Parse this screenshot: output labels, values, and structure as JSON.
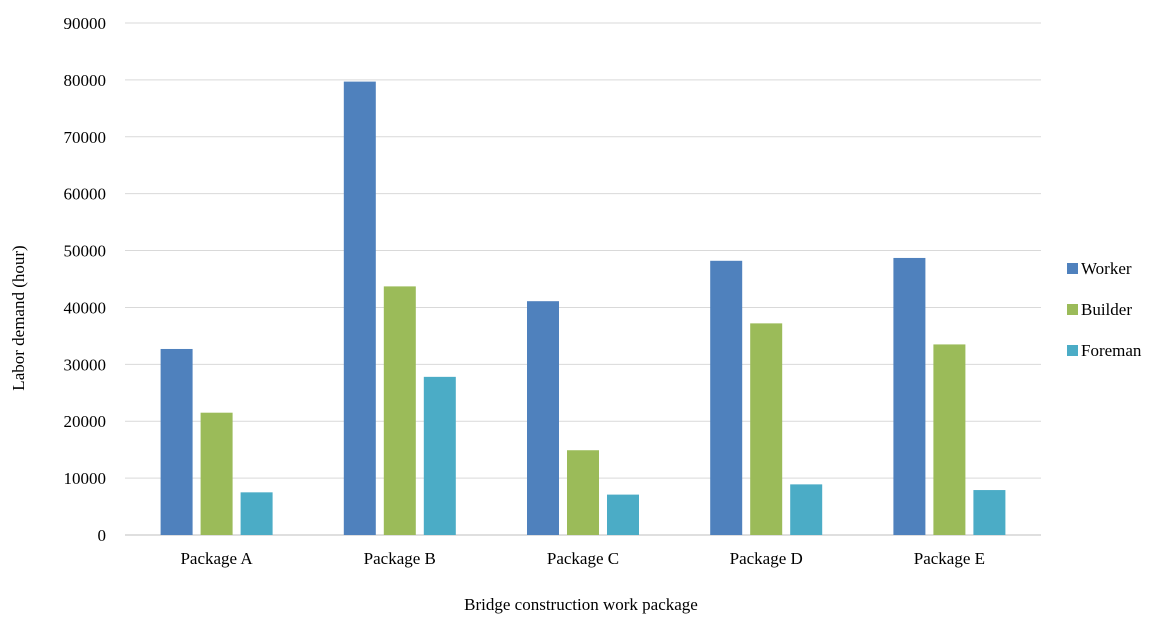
{
  "chart_data": {
    "type": "bar",
    "title": "",
    "xlabel": "Bridge construction work package",
    "ylabel": "Labor demand (hour)",
    "categories": [
      "Package A",
      "Package B",
      "Package C",
      "Package D",
      "Package E"
    ],
    "series": [
      {
        "name": "Worker",
        "color": "#4F81BD",
        "values": [
          32700,
          79700,
          41100,
          48200,
          48700
        ]
      },
      {
        "name": "Builder",
        "color": "#9BBB59",
        "values": [
          21500,
          43700,
          14900,
          37200,
          33500
        ]
      },
      {
        "name": "Foreman",
        "color": "#4BACC6",
        "values": [
          7500,
          27800,
          7100,
          8900,
          7900
        ]
      }
    ],
    "ylim": [
      0,
      90000
    ],
    "yticks": [
      0,
      10000,
      20000,
      30000,
      40000,
      50000,
      60000,
      70000,
      80000,
      90000
    ],
    "grid": true,
    "legend_position": "right"
  }
}
